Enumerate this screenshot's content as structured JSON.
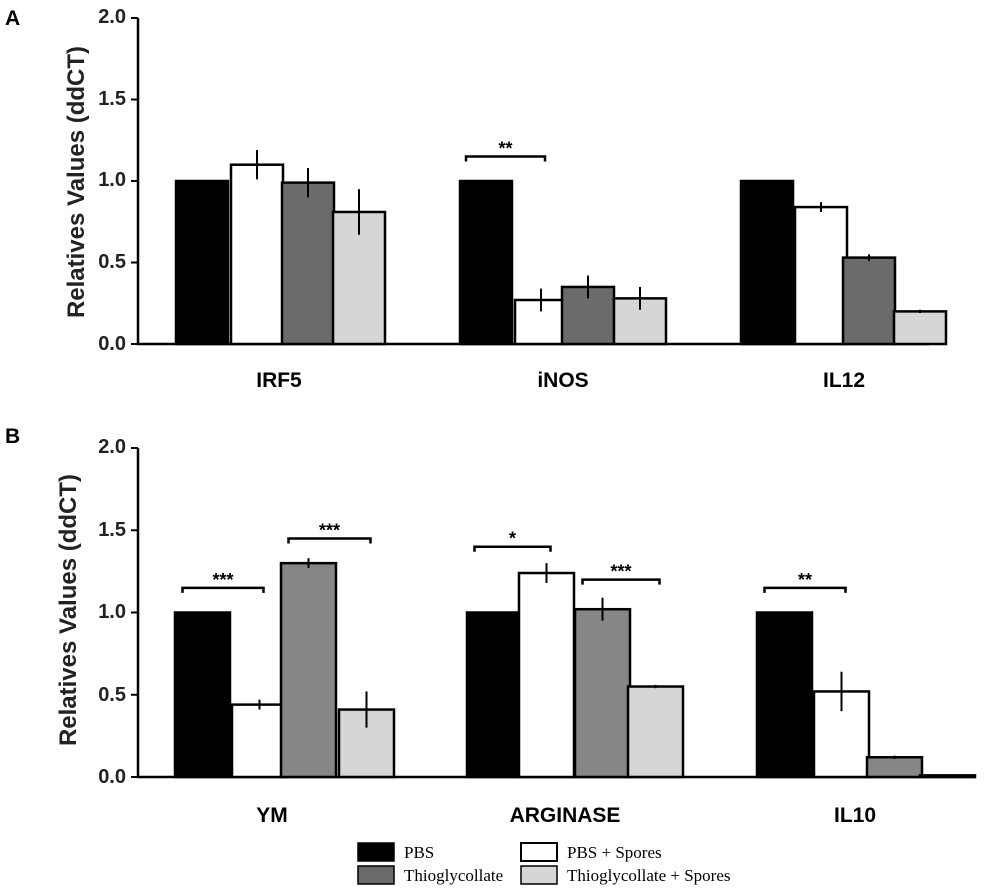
{
  "colors": {
    "PBS": "#000000",
    "PBS + Spores": "#ffffff",
    "Thioglycollate": "#6b6b6b",
    "Thioglycollate + Spores": "#d6d6d6",
    "Thioglycollate (B)": "#868686"
  },
  "legend": [
    "PBS",
    "Thioglycollate",
    "PBS + Spores",
    "Thioglycollate + Spores"
  ],
  "chart_data": [
    {
      "type": "bar",
      "panel": "A",
      "ylabel": "Relatives Values (ddCT)",
      "ylim": [
        0,
        2.0
      ],
      "yticks": [
        "0.0",
        "0.5",
        "1.0",
        "1.5",
        "2.0"
      ],
      "categories": [
        "IRF5",
        "iNOS",
        "IL12"
      ],
      "series": [
        {
          "name": "PBS",
          "values": [
            1.0,
            1.0,
            1.0
          ],
          "errors": [
            0,
            0,
            0
          ]
        },
        {
          "name": "PBS + Spores",
          "values": [
            1.1,
            0.27,
            0.84
          ],
          "errors": [
            0.09,
            0.07,
            0.03
          ]
        },
        {
          "name": "Thioglycollate",
          "values": [
            0.99,
            0.35,
            0.53
          ],
          "errors": [
            0.09,
            0.07,
            0.02
          ]
        },
        {
          "name": "Thioglycollate + Spores",
          "values": [
            0.81,
            0.28,
            0.2
          ],
          "errors": [
            0.14,
            0.07,
            0.01
          ]
        }
      ],
      "significance": [
        {
          "category": "iNOS",
          "from": 0,
          "to": 1,
          "label": "**",
          "level": 1.15
        }
      ]
    },
    {
      "type": "bar",
      "panel": "B",
      "ylabel": "Relatives Values (ddCT)",
      "ylim": [
        0,
        2.0
      ],
      "yticks": [
        "0.0",
        "0.5",
        "1.0",
        "1.5",
        "2.0"
      ],
      "categories": [
        "YM",
        "ARGINASE",
        "IL10"
      ],
      "series": [
        {
          "name": "PBS",
          "values": [
            1.0,
            1.0,
            1.0
          ],
          "errors": [
            0,
            0,
            0
          ]
        },
        {
          "name": "PBS + Spores",
          "values": [
            0.44,
            1.24,
            0.52
          ],
          "errors": [
            0.03,
            0.06,
            0.12
          ]
        },
        {
          "name": "Thioglycollate",
          "values": [
            1.3,
            1.02,
            0.12
          ],
          "errors": [
            0.03,
            0.07,
            0.01
          ]
        },
        {
          "name": "Thioglycollate + Spores",
          "values": [
            0.41,
            0.55,
            0.01
          ],
          "errors": [
            0.11,
            0.01,
            0.0
          ]
        }
      ],
      "significance": [
        {
          "category": "YM",
          "from": 0,
          "to": 1,
          "label": "***",
          "level": 1.15
        },
        {
          "category": "YM",
          "from": 2,
          "to": 3,
          "label": "***",
          "level": 1.45
        },
        {
          "category": "ARGINASE",
          "from": 0,
          "to": 1,
          "label": "*",
          "level": 1.4
        },
        {
          "category": "ARGINASE",
          "from": 2,
          "to": 3,
          "label": "***",
          "level": 1.2
        },
        {
          "category": "IL10",
          "from": 0,
          "to": 1,
          "label": "**",
          "level": 1.15
        }
      ]
    }
  ]
}
